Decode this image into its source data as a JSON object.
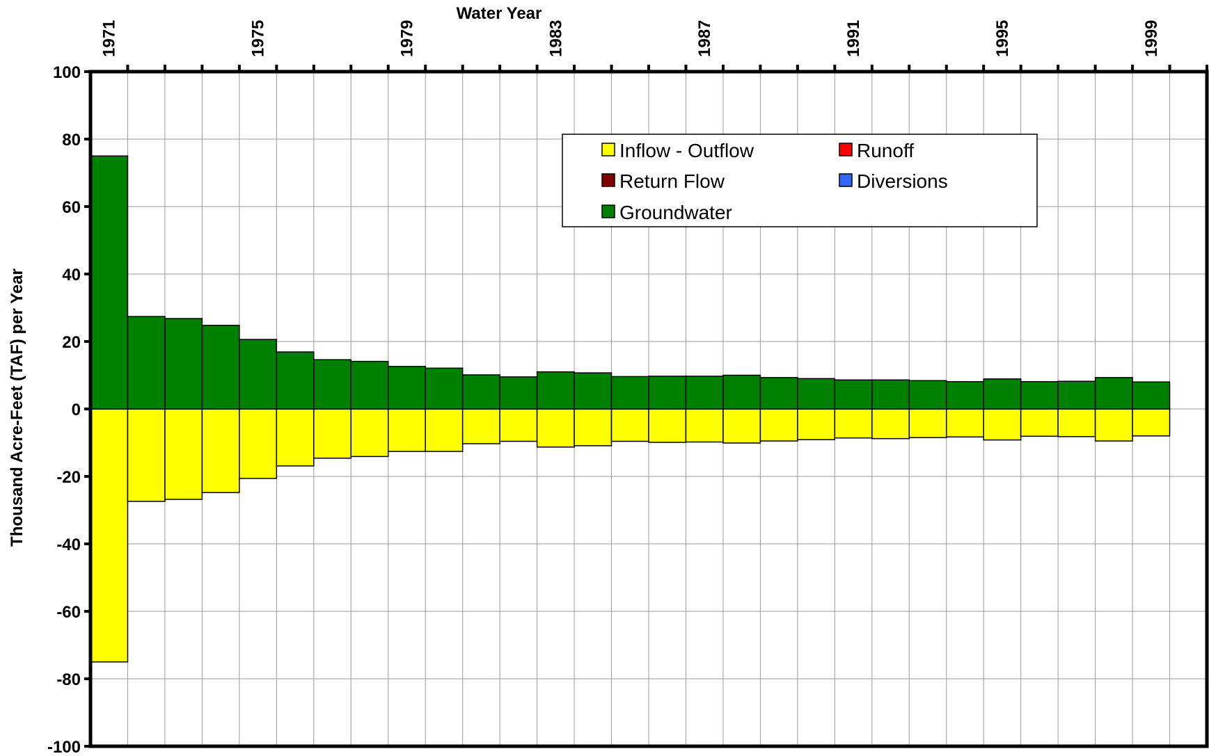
{
  "chart_data": {
    "type": "bar",
    "stacked": true,
    "xlabel": "Water Year",
    "ylabel": "Thousand Acre-Feet (TAF) per Year",
    "ylim": [
      -100,
      100
    ],
    "yticks": [
      "100",
      "80",
      "60",
      "40",
      "20",
      "0",
      "-20",
      "-40",
      "-60",
      "-80",
      "-100"
    ],
    "xtick_labels": [
      "1971",
      "1975",
      "1979",
      "1983",
      "1987",
      "1991",
      "1995",
      "1999"
    ],
    "x_axis_position": "top",
    "grid": true,
    "legend_position": "top-center",
    "categories": [
      1971,
      1972,
      1973,
      1974,
      1975,
      1976,
      1977,
      1978,
      1979,
      1980,
      1981,
      1982,
      1983,
      1984,
      1985,
      1986,
      1987,
      1988,
      1989,
      1990,
      1991,
      1992,
      1993,
      1994,
      1995,
      1996,
      1997,
      1998,
      1999
    ],
    "series": [
      {
        "name": "Inflow - Outflow",
        "color": "#ffff00",
        "values": [
          -75,
          -27.4,
          -26.8,
          -24.8,
          -20.6,
          -16.9,
          -14.6,
          -14.1,
          -12.6,
          -12.6,
          -10.3,
          -9.6,
          -11.3,
          -10.9,
          -9.6,
          -9.9,
          -9.8,
          -10.1,
          -9.5,
          -9.1,
          -8.6,
          -8.8,
          -8.5,
          -8.3,
          -9.2,
          -8.1,
          -8.2,
          -9.5,
          -8.0
        ]
      },
      {
        "name": "Runoff",
        "color": "#ff0000",
        "values": [
          0,
          0,
          0,
          0,
          0,
          0,
          0,
          0,
          0,
          0,
          0,
          0,
          0,
          0,
          0,
          0,
          0,
          0,
          0,
          0,
          0,
          0,
          0,
          0,
          0,
          0,
          0,
          0,
          0
        ]
      },
      {
        "name": "Return Flow",
        "color": "#800000",
        "values": [
          0,
          0,
          0,
          0,
          0,
          0,
          0,
          0,
          0,
          0,
          0,
          0,
          0,
          0,
          0,
          0,
          0,
          0,
          0,
          0,
          0,
          0,
          0,
          0,
          0,
          0,
          0,
          0,
          0
        ]
      },
      {
        "name": "Diversions",
        "color": "#3366ff",
        "values": [
          0,
          0,
          0,
          0,
          0,
          0,
          0,
          0,
          0,
          0,
          0,
          0,
          0,
          0,
          0,
          0,
          0,
          0,
          0,
          0,
          0,
          0,
          0,
          0,
          0,
          0,
          0,
          0,
          0
        ]
      },
      {
        "name": "Groundwater",
        "color": "#008000",
        "values": [
          75,
          27.4,
          26.8,
          24.8,
          20.6,
          16.9,
          14.6,
          14.1,
          12.6,
          12.1,
          10.1,
          9.5,
          11.0,
          10.7,
          9.6,
          9.7,
          9.7,
          10.0,
          9.3,
          9.0,
          8.6,
          8.6,
          8.4,
          8.1,
          8.9,
          8.1,
          8.2,
          9.3,
          8.0
        ]
      }
    ]
  }
}
